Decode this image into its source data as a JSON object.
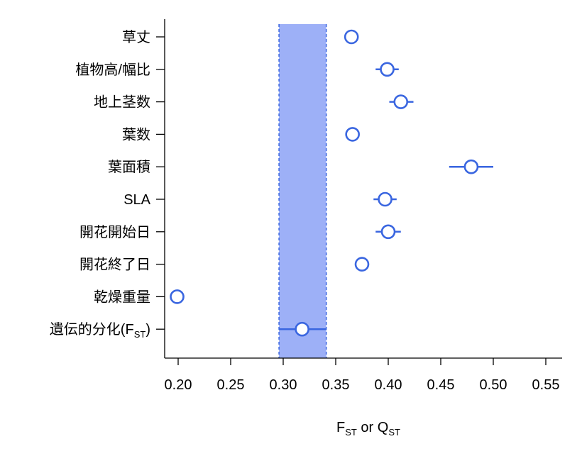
{
  "chart_data": {
    "type": "scatter",
    "title": "",
    "xlabel": {
      "main1": "F",
      "sub1": "ST",
      "mid": " or Q",
      "sub2": "ST"
    },
    "ylabel": "",
    "xlim": [
      0.19,
      0.57
    ],
    "xticks": [
      "0.20",
      "0.25",
      "0.30",
      "0.35",
      "0.40",
      "0.45",
      "0.50",
      "0.55"
    ],
    "xtick_values": [
      0.2,
      0.25,
      0.3,
      0.35,
      0.4,
      0.45,
      0.5,
      0.55
    ],
    "grid": false,
    "marker_color": "#3a66e0",
    "band_color": "#9db0f7",
    "band": {
      "from": 0.296,
      "to": 0.341
    },
    "rows": [
      {
        "label": "草丈",
        "value": 0.365,
        "err_low": 0.365,
        "err_high": 0.365
      },
      {
        "label": "植物高/幅比",
        "value": 0.399,
        "err_low": 0.388,
        "err_high": 0.41
      },
      {
        "label": "地上茎数",
        "value": 0.412,
        "err_low": 0.401,
        "err_high": 0.424
      },
      {
        "label": "葉数",
        "value": 0.366,
        "err_low": 0.366,
        "err_high": 0.366
      },
      {
        "label": "葉面積",
        "value": 0.479,
        "err_low": 0.458,
        "err_high": 0.5
      },
      {
        "label": "SLA",
        "value": 0.397,
        "err_low": 0.386,
        "err_high": 0.408
      },
      {
        "label": "開花開始日",
        "value": 0.4,
        "err_low": 0.388,
        "err_high": 0.412
      },
      {
        "label": "開花終了日",
        "value": 0.375,
        "err_low": 0.369,
        "err_high": 0.381
      },
      {
        "label": "乾燥重量",
        "value": 0.199,
        "err_low": 0.199,
        "err_high": 0.199
      },
      {
        "label": "遺伝的分化(FST)",
        "label_main": "遺伝的分化(F",
        "label_sub": "ST",
        "label_end": ")",
        "value": 0.318,
        "err_low": 0.296,
        "err_high": 0.341
      }
    ]
  }
}
